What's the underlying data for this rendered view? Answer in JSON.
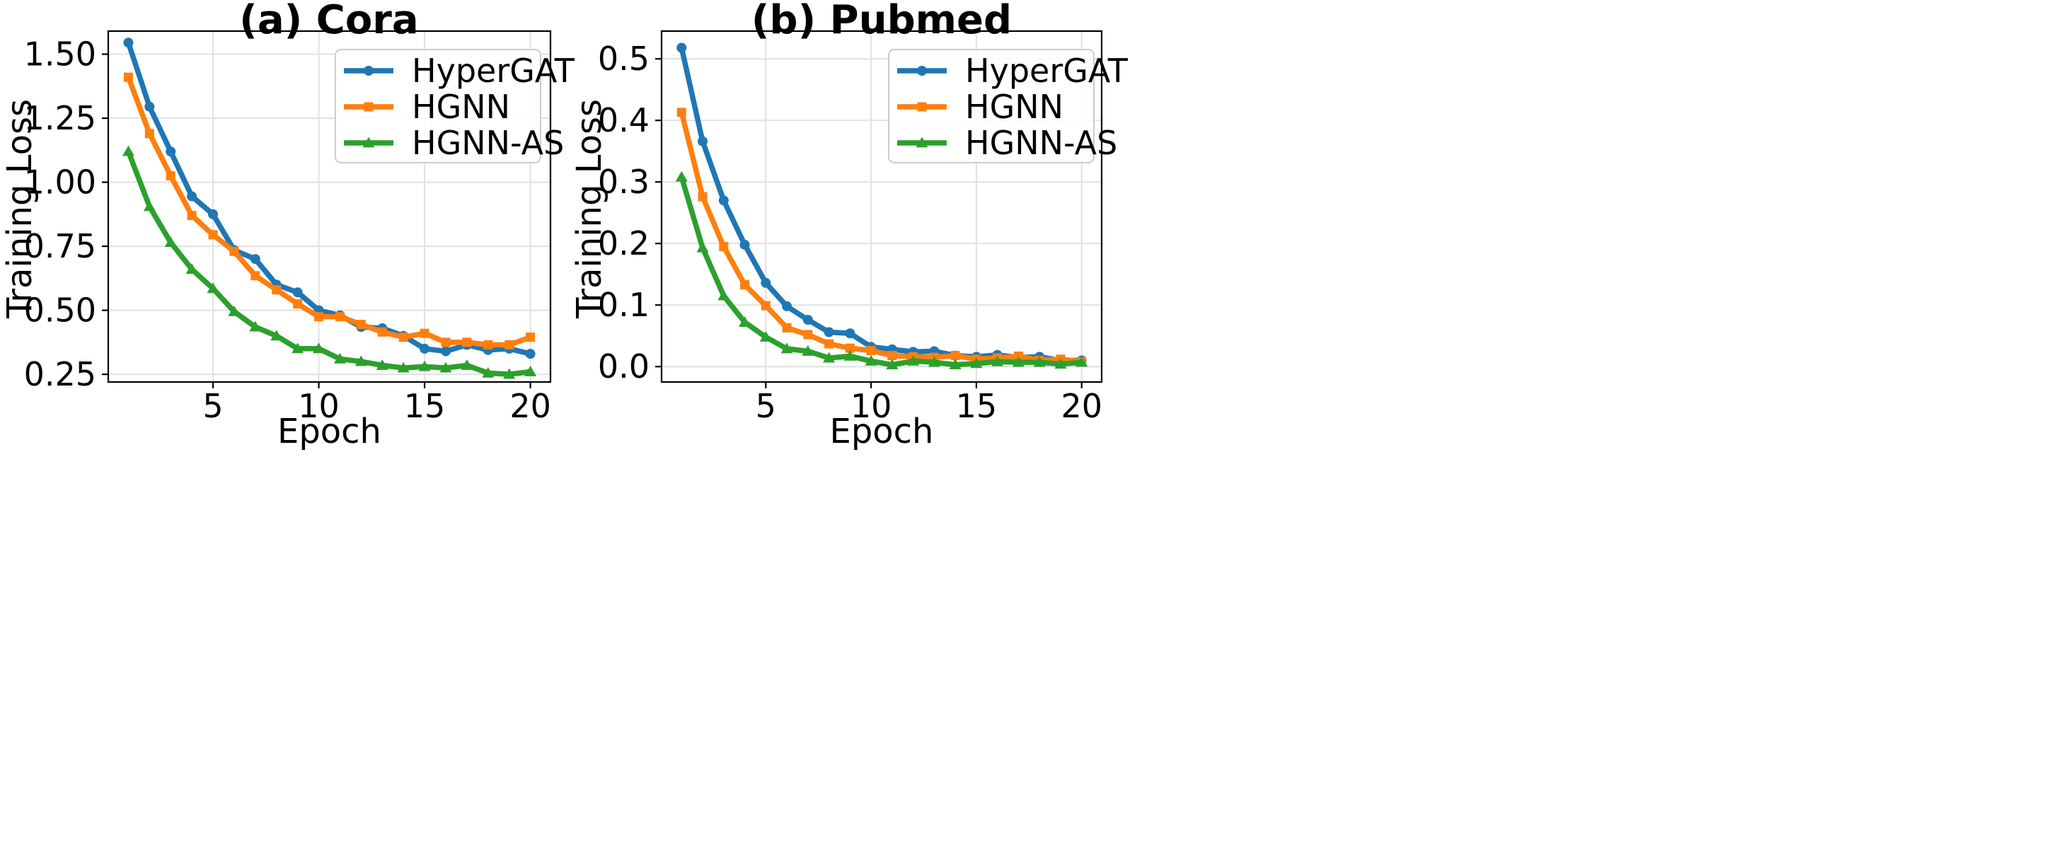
{
  "chart_data": [
    {
      "type": "line",
      "title": "(a) Cora",
      "xlabel": "Epoch",
      "ylabel": "Training Loss",
      "xlim": [
        0.05,
        20.95
      ],
      "ylim": [
        0.22,
        1.59
      ],
      "xticks": [
        5,
        10,
        15,
        20
      ],
      "yticks": [
        0.25,
        0.5,
        0.75,
        1.0,
        1.25,
        1.5
      ],
      "ytick_labels": [
        "0.25",
        "0.50",
        "0.75",
        "1.00",
        "1.25",
        "1.50"
      ],
      "grid": true,
      "legend": "top-right",
      "x": [
        1,
        2,
        3,
        4,
        5,
        6,
        7,
        8,
        9,
        10,
        11,
        12,
        13,
        14,
        15,
        16,
        17,
        18,
        19,
        20
      ],
      "series": [
        {
          "name": "HyperGAT",
          "color": "#1f77b4",
          "marker": "circle",
          "values": [
            1.545,
            1.295,
            1.12,
            0.945,
            0.875,
            0.735,
            0.7,
            0.6,
            0.57,
            0.5,
            0.48,
            0.435,
            0.43,
            0.4,
            0.35,
            0.34,
            0.365,
            0.345,
            0.35,
            0.33
          ]
        },
        {
          "name": "HGNN",
          "color": "#ff7f0e",
          "marker": "square",
          "values": [
            1.41,
            1.19,
            1.025,
            0.87,
            0.795,
            0.73,
            0.635,
            0.58,
            0.525,
            0.475,
            0.475,
            0.445,
            0.415,
            0.395,
            0.41,
            0.375,
            0.375,
            0.365,
            0.365,
            0.395
          ]
        },
        {
          "name": "HGNN-AS",
          "color": "#2ca02c",
          "marker": "triangle",
          "values": [
            1.12,
            0.905,
            0.765,
            0.66,
            0.585,
            0.495,
            0.435,
            0.4,
            0.35,
            0.35,
            0.31,
            0.3,
            0.285,
            0.275,
            0.28,
            0.275,
            0.285,
            0.255,
            0.25,
            0.26
          ]
        }
      ]
    },
    {
      "type": "line",
      "title": "(b) Pubmed",
      "xlabel": "Epoch",
      "ylabel": "Training Loss",
      "xlim": [
        0.05,
        20.95
      ],
      "ylim": [
        -0.025,
        0.545
      ],
      "xticks": [
        5,
        10,
        15,
        20
      ],
      "yticks": [
        0.0,
        0.1,
        0.2,
        0.3,
        0.4,
        0.5
      ],
      "ytick_labels": [
        "0.0",
        "0.1",
        "0.2",
        "0.3",
        "0.4",
        "0.5"
      ],
      "grid": true,
      "legend": "top-right",
      "x": [
        1,
        2,
        3,
        4,
        5,
        6,
        7,
        8,
        9,
        10,
        11,
        12,
        13,
        14,
        15,
        16,
        17,
        18,
        19,
        20
      ],
      "series": [
        {
          "name": "HyperGAT",
          "color": "#1f77b4",
          "marker": "circle",
          "values": [
            0.518,
            0.366,
            0.27,
            0.198,
            0.136,
            0.098,
            0.076,
            0.056,
            0.054,
            0.032,
            0.028,
            0.024,
            0.025,
            0.018,
            0.016,
            0.019,
            0.015,
            0.016,
            0.01,
            0.01
          ]
        },
        {
          "name": "HGNN",
          "color": "#ff7f0e",
          "marker": "square",
          "values": [
            0.413,
            0.276,
            0.195,
            0.133,
            0.099,
            0.063,
            0.052,
            0.037,
            0.03,
            0.026,
            0.018,
            0.016,
            0.015,
            0.018,
            0.012,
            0.014,
            0.017,
            0.01,
            0.012,
            0.008
          ]
        },
        {
          "name": "HGNN-AS",
          "color": "#2ca02c",
          "marker": "triangle",
          "values": [
            0.308,
            0.193,
            0.115,
            0.072,
            0.048,
            0.029,
            0.025,
            0.014,
            0.017,
            0.009,
            0.003,
            0.009,
            0.007,
            0.003,
            0.005,
            0.008,
            0.007,
            0.007,
            0.004,
            0.007
          ]
        }
      ]
    }
  ]
}
